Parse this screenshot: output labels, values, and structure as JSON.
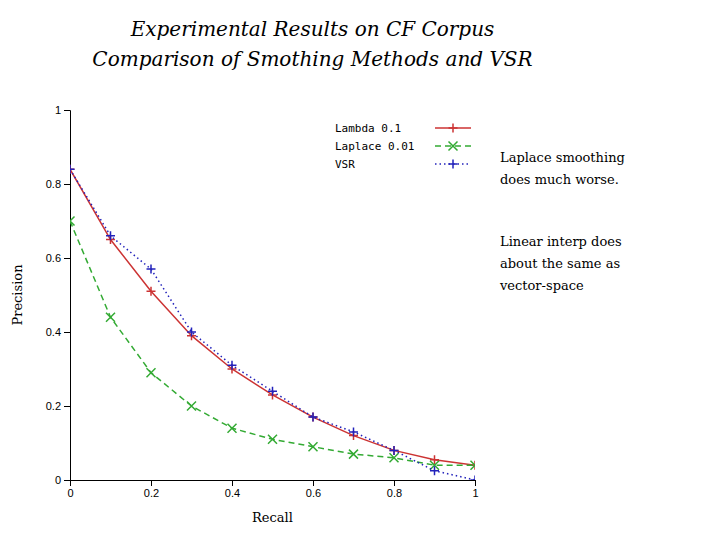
{
  "chart_data": {
    "type": "line",
    "title": "Experimental Results on CF Corpus",
    "subtitle": "Comparison of Smothing Methods and VSR",
    "x_label": "Recall",
    "y_label": "Precision",
    "x": [
      0.0,
      0.1,
      0.2,
      0.3,
      0.4,
      0.5,
      0.6,
      0.7,
      0.8,
      0.9,
      1.0
    ],
    "series": [
      {
        "name": "Lambda 0.1",
        "color": "#cc3333",
        "line_style": "solid",
        "marker": "plus",
        "values": [
          0.84,
          0.65,
          0.51,
          0.39,
          0.3,
          0.23,
          0.17,
          0.12,
          0.08,
          0.055,
          0.04
        ]
      },
      {
        "name": "Laplace 0.01",
        "color": "#33aa33",
        "line_style": "dashed",
        "marker": "x",
        "values": [
          0.7,
          0.44,
          0.29,
          0.2,
          0.14,
          0.11,
          0.09,
          0.07,
          0.06,
          0.04,
          0.04
        ]
      },
      {
        "name": "VSR",
        "color": "#2222bb",
        "line_style": "dotted",
        "marker": "plus",
        "values": [
          0.84,
          0.66,
          0.57,
          0.4,
          0.31,
          0.24,
          0.17,
          0.13,
          0.08,
          0.025,
          0.0
        ]
      }
    ],
    "xlim": [
      0,
      1
    ],
    "ylim": [
      0,
      1
    ],
    "xticks": [
      0,
      0.2,
      0.4,
      0.6,
      0.8,
      1
    ],
    "yticks": [
      0,
      0.2,
      0.4,
      0.6,
      0.8,
      1
    ],
    "grid": false,
    "legend": "upper right",
    "annotations": [
      [
        "Laplace smoothing",
        "does much worse."
      ],
      [
        "Linear interp does",
        "about the same as",
        "vector-space"
      ]
    ]
  }
}
